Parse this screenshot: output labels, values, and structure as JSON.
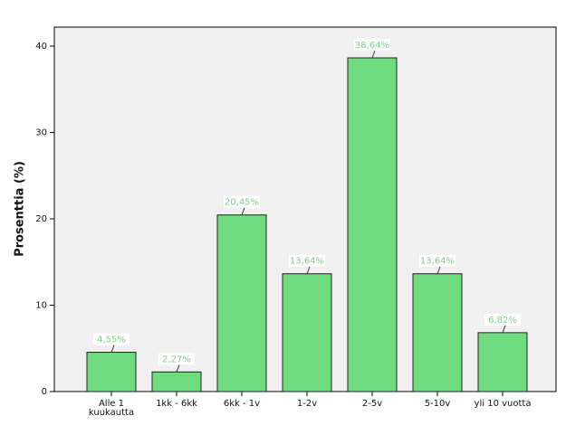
{
  "chart_data": {
    "type": "bar",
    "ylabel": "Prosenttia (%)",
    "categories": [
      "Alle 1 kuukautta",
      "1kk - 6kk",
      "6kk - 1v",
      "1-2v",
      "2-5v",
      "5-10v",
      "yli 10 vuotta"
    ],
    "values": [
      4.55,
      2.27,
      20.45,
      13.64,
      38.64,
      13.64,
      6.82
    ],
    "value_labels": [
      "4,55%",
      "2,27%",
      "20,45%",
      "13,64%",
      "38,64%",
      "13,64%",
      "6,82%"
    ],
    "color": "#70dc80",
    "ylim": [
      0,
      42.2
    ],
    "yticks": [
      0,
      10,
      20,
      30,
      40
    ]
  }
}
